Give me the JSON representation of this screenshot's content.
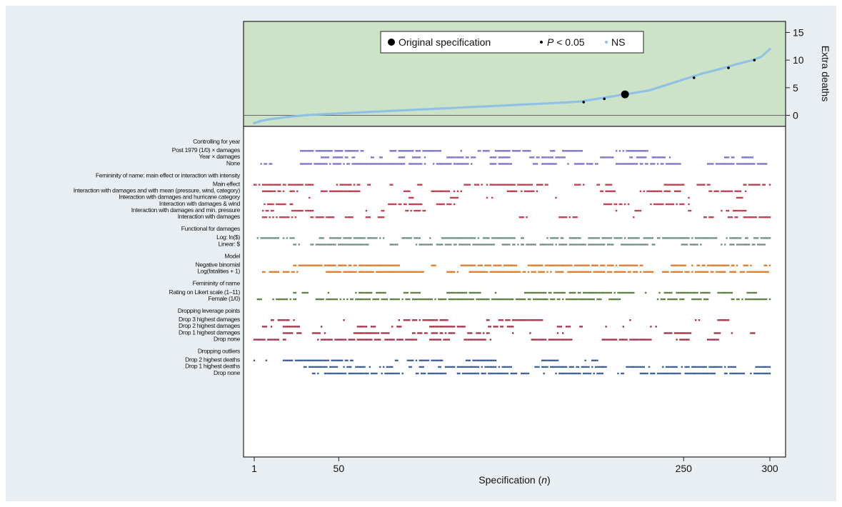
{
  "chart_data": {
    "type": "scatter",
    "top_panel": {
      "ylabel": "Extra deaths",
      "yticks": [
        0,
        5,
        10,
        15
      ],
      "ylim": [
        -2,
        17
      ],
      "background": "#cde3c8",
      "line_color": "#8fc0e6",
      "curve_points": [
        [
          1,
          -1.4
        ],
        [
          5,
          -1.0
        ],
        [
          10,
          -0.7
        ],
        [
          20,
          -0.3
        ],
        [
          30,
          0.0
        ],
        [
          40,
          0.2
        ],
        [
          60,
          0.5
        ],
        [
          80,
          0.8
        ],
        [
          100,
          1.1
        ],
        [
          120,
          1.4
        ],
        [
          140,
          1.7
        ],
        [
          160,
          2.0
        ],
        [
          180,
          2.3
        ],
        [
          190,
          2.5
        ],
        [
          200,
          3.0
        ],
        [
          210,
          3.5
        ],
        [
          215,
          3.8
        ],
        [
          220,
          4.0
        ],
        [
          230,
          4.5
        ],
        [
          240,
          5.5
        ],
        [
          250,
          6.5
        ],
        [
          260,
          7.5
        ],
        [
          270,
          8.3
        ],
        [
          280,
          9.2
        ],
        [
          290,
          10.0
        ],
        [
          295,
          10.6
        ],
        [
          300,
          12.0
        ]
      ],
      "original_specification": [
        216,
        3.8
      ],
      "significant_points": [
        [
          192,
          2.4
        ],
        [
          204,
          3.0
        ],
        [
          256,
          6.8
        ],
        [
          276,
          8.6
        ],
        [
          291,
          10.0
        ]
      ],
      "legend": {
        "original": "Original specification",
        "p_prefix": "P",
        "p_suffix": " < 0.05",
        "ns": "NS"
      }
    },
    "xlabel_prefix": "Specification (",
    "xlabel_var": "n",
    "xlabel_suffix": ")",
    "xticks": [
      1,
      50,
      250,
      300
    ],
    "xlim": [
      1,
      300
    ],
    "groups": [
      {
        "title": "Controlling for year",
        "color": "#7a73c9",
        "rows": [
          {
            "label": "Post 1979 (1/0) × damages",
            "density": 0.33,
            "start": 27,
            "end": 272,
            "seed": 11
          },
          {
            "label": "Year × damages",
            "density": 0.35,
            "start": 40,
            "end": 290,
            "seed": 12
          },
          {
            "label": "None",
            "density": 0.5,
            "start": 1,
            "end": 300,
            "seed": 13
          }
        ]
      },
      {
        "title": "Femininity of name: main effect or interaction with intensity",
        "color": "#c23b4f",
        "rows": [
          {
            "label": "Main effect",
            "density": 0.3,
            "start": 1,
            "end": 300,
            "seed": 21
          },
          {
            "label": "Interaction with damages and with mean (pressure, wind, category)",
            "density": 0.22,
            "start": 1,
            "end": 300,
            "seed": 22
          },
          {
            "label": "Interaction with damages and hurricane category",
            "density": 0.14,
            "start": 1,
            "end": 300,
            "seed": 23
          },
          {
            "label": "Interaction with damages & wind",
            "density": 0.16,
            "start": 1,
            "end": 300,
            "seed": 24
          },
          {
            "label": "Interaction with damages and min. pressure",
            "density": 0.16,
            "start": 1,
            "end": 300,
            "seed": 25
          },
          {
            "label": "Interaction with damages",
            "density": 0.3,
            "start": 1,
            "end": 300,
            "seed": 26
          }
        ]
      },
      {
        "title": "Functional for damages",
        "color": "#6f9088",
        "rows": [
          {
            "label": "Log: ln($)",
            "density": 0.45,
            "start": 1,
            "end": 300,
            "seed": 31
          },
          {
            "label": "Linear: $",
            "density": 0.5,
            "start": 24,
            "end": 300,
            "seed": 32
          }
        ]
      },
      {
        "title": "Model",
        "color": "#e07b2a",
        "rows": [
          {
            "label": "Negative binomial",
            "density": 0.45,
            "start": 24,
            "end": 300,
            "seed": 41
          },
          {
            "label": "Log(fatalities + 1)",
            "density": 0.55,
            "start": 1,
            "end": 300,
            "seed": 42
          }
        ]
      },
      {
        "title": "Femininity of name",
        "color": "#5f7e43",
        "rows": [
          {
            "label": "Rating on Likert scale (1–11)",
            "density": 0.45,
            "start": 24,
            "end": 300,
            "seed": 51
          },
          {
            "label": "Female (1/0)",
            "density": 0.5,
            "start": 1,
            "end": 300,
            "seed": 52
          }
        ]
      },
      {
        "title": "Dropping leverage points",
        "color": "#a53245",
        "rows": [
          {
            "label": "Drop 3 highest damages",
            "density": 0.2,
            "start": 1,
            "end": 285,
            "seed": 61
          },
          {
            "label": "Drop 2 highest damages",
            "density": 0.25,
            "start": 3,
            "end": 290,
            "seed": 62
          },
          {
            "label": "Drop 1 highest damages",
            "density": 0.3,
            "start": 5,
            "end": 300,
            "seed": 63
          },
          {
            "label": "Drop none",
            "density": 0.35,
            "start": 1,
            "end": 300,
            "seed": 64
          }
        ]
      },
      {
        "title": "Dropping outliers",
        "color": "#3f5f93",
        "rows": [
          {
            "label": "Drop 2 highest deaths",
            "density": 0.45,
            "start": 1,
            "end": 200,
            "seed": 71
          },
          {
            "label": "Drop 1 highest deaths",
            "density": 0.4,
            "start": 17,
            "end": 300,
            "seed": 72
          },
          {
            "label": "Drop none",
            "density": 0.45,
            "start": 17,
            "end": 300,
            "seed": 73
          }
        ]
      }
    ]
  }
}
